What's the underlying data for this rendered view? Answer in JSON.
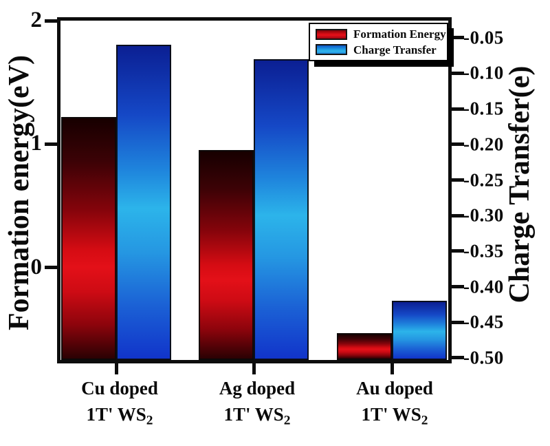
{
  "chart_data": {
    "type": "bar",
    "title": "",
    "categories": [
      {
        "line1": "Cu doped",
        "line2_prefix": "1T' WS",
        "line2_sub": "2"
      },
      {
        "line1": "Ag doped",
        "line2_prefix": "1T' WS",
        "line2_sub": "2"
      },
      {
        "line1": "Au doped",
        "line2_prefix": "1T' WS",
        "line2_sub": "2"
      }
    ],
    "series": [
      {
        "name": "Formation Energy",
        "axis": "left",
        "values": [
          1.22,
          0.95,
          -0.53
        ],
        "color": "#d90d15"
      },
      {
        "name": "Charge Transfer",
        "axis": "right",
        "values": [
          -0.06,
          -0.08,
          -0.42
        ],
        "color": "#1f9ae3"
      }
    ],
    "left_axis": {
      "label": "Formation energy(eV)",
      "tick_labels": [
        "2",
        "1",
        "0"
      ],
      "tick_values": [
        2,
        1,
        0
      ],
      "range": [
        -0.75,
        2
      ]
    },
    "right_axis": {
      "label": "Charge Transfer(e)",
      "tick_labels": [
        "-0.05",
        "-0.10",
        "-0.15",
        "-0.20",
        "-0.25",
        "-0.30",
        "-0.35",
        "-0.40",
        "-0.45",
        "-0.50"
      ],
      "tick_values": [
        -0.05,
        -0.1,
        -0.15,
        -0.2,
        -0.25,
        -0.3,
        -0.35,
        -0.4,
        -0.45,
        -0.5
      ],
      "range": [
        -0.503,
        -0.026
      ]
    },
    "legend": {
      "position": "top-right",
      "entries": [
        "Formation Energy",
        "Charge Transfer"
      ]
    },
    "grid": false
  },
  "colors": {
    "frame": "#0d0d0d",
    "text": "#0a0a0a",
    "bar_red_mid": "#e31018",
    "bar_red_top": "#170000",
    "bar_red_bottom": "#2a0103",
    "bar_blue_mid": "#2cb4ea",
    "bar_blue_top": "#0b1f93",
    "bar_blue_bottom": "#1134ca",
    "background": "#ffffff"
  }
}
